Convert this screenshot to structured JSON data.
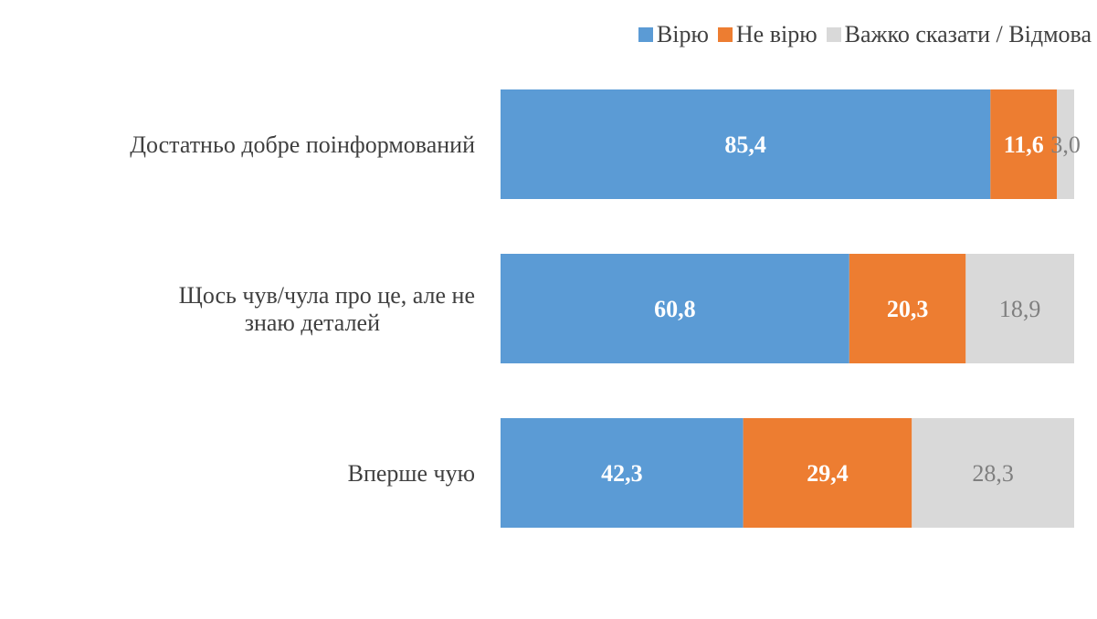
{
  "chart_data": {
    "type": "bar",
    "orientation": "horizontal",
    "stacked": true,
    "percent_stacked": true,
    "title": "",
    "xlabel": "",
    "ylabel": "",
    "grid": false,
    "legend_position": "top-right",
    "categories": [
      "Достатньо добре поінформований",
      "Щось чув/чула про це, але не знаю деталей",
      "Вперше чую"
    ],
    "series": [
      {
        "name": "Вірю",
        "color": "#5B9BD5",
        "label_color": "#FFFFFF",
        "label_bold": true,
        "values": [
          85.4,
          60.8,
          42.3
        ],
        "labels": [
          "85,4",
          "60,8",
          "42,3"
        ]
      },
      {
        "name": "Не вірю",
        "color": "#ED7D31",
        "label_color": "#FFFFFF",
        "label_bold": true,
        "values": [
          11.6,
          20.3,
          29.4
        ],
        "labels": [
          "11,6",
          "20,3",
          "29,4"
        ]
      },
      {
        "name": "Важко сказати / Відмова",
        "color": "#D9D9D9",
        "label_color": "#7F7F7F",
        "label_bold": false,
        "values": [
          3.0,
          18.9,
          28.3
        ],
        "labels": [
          "3,0",
          "18,9",
          "28,3"
        ]
      }
    ]
  }
}
